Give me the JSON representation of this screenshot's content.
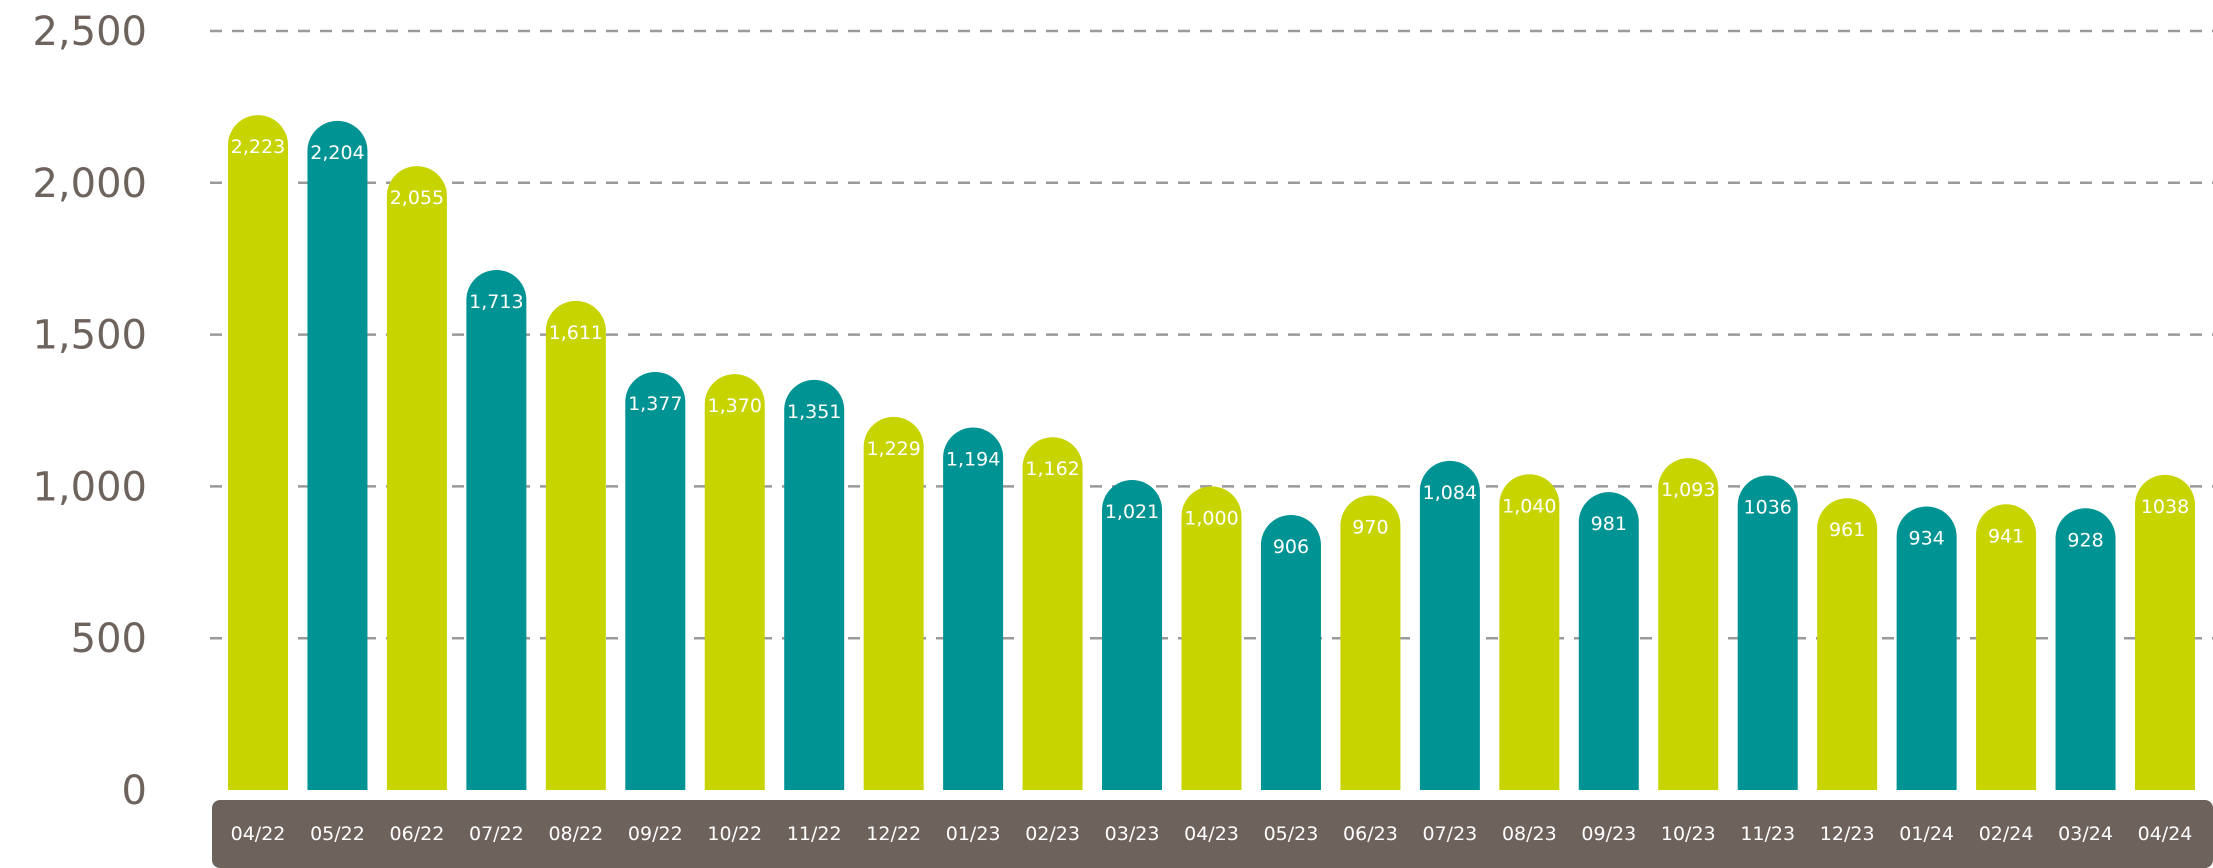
{
  "chart_data": {
    "type": "bar",
    "categories": [
      "04/22",
      "05/22",
      "06/22",
      "07/22",
      "08/22",
      "09/22",
      "10/22",
      "11/22",
      "12/22",
      "01/23",
      "02/23",
      "03/23",
      "04/23",
      "05/23",
      "06/23",
      "07/23",
      "08/23",
      "09/23",
      "10/23",
      "11/23",
      "12/23",
      "01/24",
      "02/24",
      "03/24",
      "04/24"
    ],
    "values": [
      2223,
      2204,
      2055,
      1713,
      1611,
      1377,
      1370,
      1351,
      1229,
      1194,
      1162,
      1021,
      1000,
      906,
      970,
      1084,
      1040,
      981,
      1093,
      1036,
      961,
      934,
      941,
      928,
      1038
    ],
    "value_labels": [
      "2,223",
      "2,204",
      "2,055",
      "1,713",
      "1,611",
      "1,377",
      "1,370",
      "1,351",
      "1,229",
      "1,194",
      "1,162",
      "1,021",
      "1,000",
      "906",
      "970",
      "1,084",
      "1,040",
      "981",
      "1,093",
      "1036",
      "961",
      "934",
      "941",
      "928",
      "1038"
    ],
    "ylim": [
      0,
      2500
    ],
    "yticks": [
      0,
      500,
      1000,
      1500,
      2000,
      2500
    ],
    "ytick_labels": [
      "0",
      "500",
      "1,000",
      "1,500",
      "2,000",
      "2,500"
    ],
    "grid": "horizontal dashed",
    "colors": {
      "lime": "#c8d400",
      "teal": "#009394",
      "axis_band": "#6e625d",
      "tick_text": "#6e625d",
      "grid": "#9a9a9a"
    },
    "bar_color_sequence": [
      "lime",
      "teal",
      "lime",
      "teal",
      "lime",
      "teal",
      "lime",
      "teal",
      "lime",
      "teal",
      "lime",
      "teal",
      "lime",
      "teal",
      "lime",
      "teal",
      "lime",
      "teal",
      "lime",
      "teal",
      "lime",
      "teal",
      "lime",
      "teal",
      "lime"
    ],
    "title": "",
    "xlabel": "",
    "ylabel": ""
  }
}
